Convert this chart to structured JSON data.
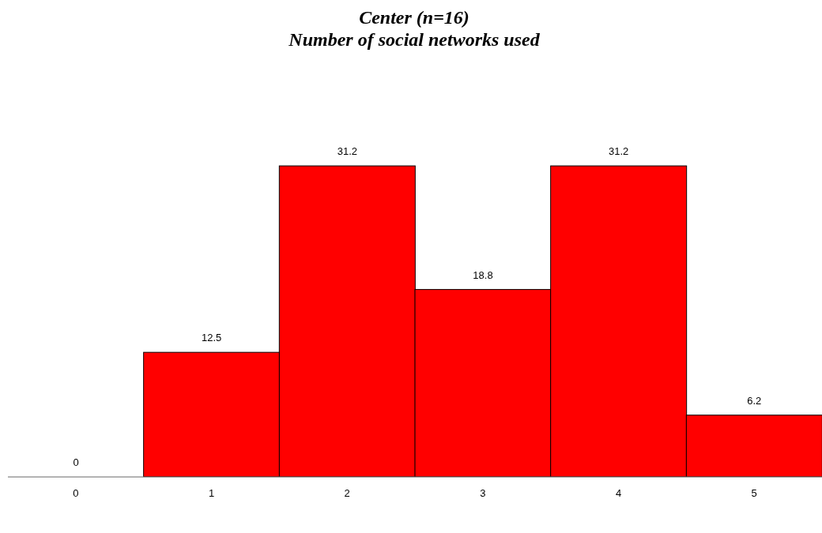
{
  "chart_data": {
    "type": "bar",
    "title": "Center (n=16)\nNumber of social networks used",
    "categories": [
      "0",
      "1",
      "2",
      "3",
      "4",
      "5"
    ],
    "values": [
      0,
      12.5,
      31.2,
      18.8,
      31.2,
      6.2
    ],
    "color": "#ff0000",
    "data_labels": true
  }
}
